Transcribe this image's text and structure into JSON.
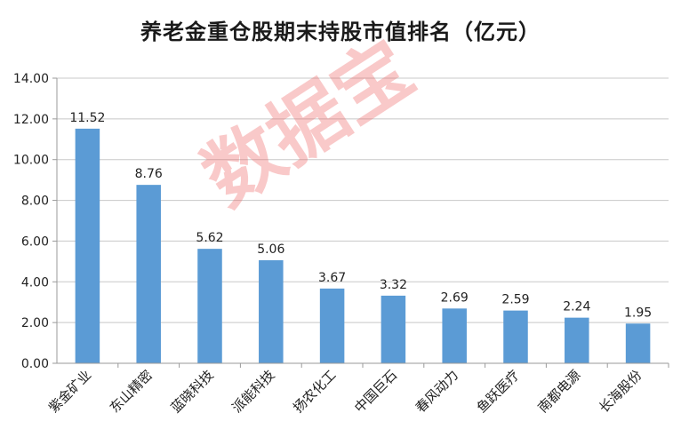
{
  "chart_data": {
    "type": "bar",
    "title": "养老金重仓股期末持股市值排名（亿元）",
    "categories": [
      "紫金矿业",
      "东山精密",
      "蓝晓科技",
      "派能科技",
      "扬农化工",
      "中国巨石",
      "春风动力",
      "鱼跃医疗",
      "南都电源",
      "长海股份"
    ],
    "values": [
      11.52,
      8.76,
      5.62,
      5.06,
      3.67,
      3.32,
      2.69,
      2.59,
      2.24,
      1.95
    ],
    "value_labels": [
      "11.52",
      "8.76",
      "5.62",
      "5.06",
      "3.67",
      "3.32",
      "2.69",
      "2.59",
      "2.24",
      "1.95"
    ],
    "ylim": [
      0,
      14
    ],
    "yticks": [
      "0.00",
      "2.00",
      "4.00",
      "6.00",
      "8.00",
      "10.00",
      "12.00",
      "14.00"
    ],
    "grid": true,
    "bar_color": "#5b9bd5",
    "watermark": "数据宝"
  }
}
